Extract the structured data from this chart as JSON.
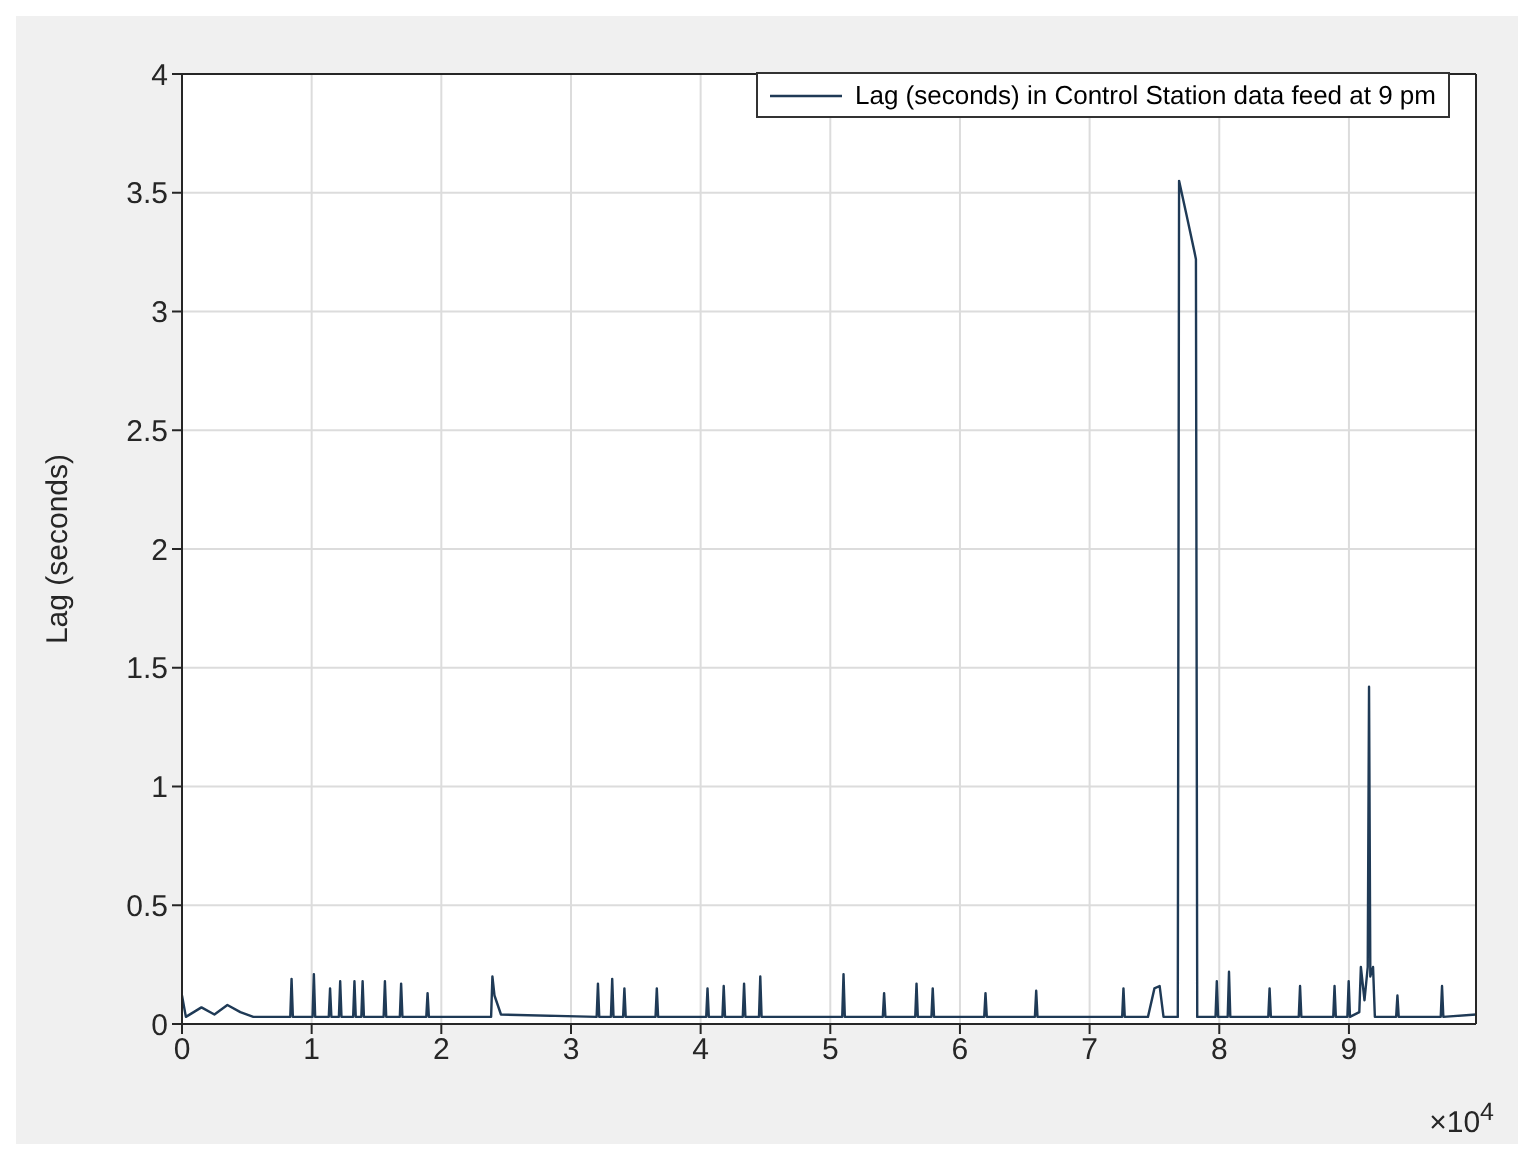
{
  "chart_data": {
    "type": "line",
    "ylabel": "Lag (seconds)",
    "annotations": [
      "×10$^{4}$"
    ],
    "xlim": [
      0,
      9.98
    ],
    "ylim": [
      0,
      4
    ],
    "xticks": [
      0,
      1,
      2,
      3,
      4,
      5,
      6,
      7,
      8,
      9
    ],
    "yticks": [
      0,
      0.5,
      1,
      1.5,
      2,
      2.5,
      3,
      3.5,
      4
    ],
    "grid": true,
    "legend": "top right",
    "marker": "none",
    "line_style": "solid",
    "series": [
      {
        "name": "Lag (seconds) in Control Station data feed at 9 pm",
        "color": "#1f3a56",
        "x": [
          0,
          0.03,
          0.15,
          0.25,
          0.35,
          0.45,
          0.55,
          0.835,
          0.845,
          0.855,
          1.007,
          1.017,
          1.027,
          1.132,
          1.142,
          1.152,
          1.21,
          1.22,
          1.23,
          1.32,
          1.33,
          1.34,
          1.383,
          1.393,
          1.403,
          1.555,
          1.565,
          1.575,
          1.68,
          1.69,
          1.7,
          1.884,
          1.894,
          1.904,
          2.384,
          2.394,
          2.41,
          2.46,
          3.198,
          3.208,
          3.218,
          3.308,
          3.318,
          3.328,
          3.402,
          3.412,
          3.422,
          3.652,
          3.662,
          3.672,
          4.043,
          4.053,
          4.063,
          4.168,
          4.178,
          4.188,
          4.325,
          4.335,
          4.345,
          4.45,
          4.46,
          4.47,
          5.092,
          5.102,
          5.112,
          5.405,
          5.415,
          5.425,
          5.655,
          5.665,
          5.675,
          5.78,
          5.79,
          5.8,
          6.187,
          6.197,
          6.207,
          6.578,
          6.588,
          6.598,
          7.251,
          7.261,
          7.271,
          7.45,
          7.5,
          7.54,
          7.57,
          7.68,
          7.69,
          7.75,
          7.809,
          7.82,
          7.83,
          7.971,
          7.981,
          7.991,
          8.065,
          8.075,
          8.085,
          8.378,
          8.388,
          8.398,
          8.613,
          8.623,
          8.633,
          8.879,
          8.889,
          8.899,
          8.988,
          8.998,
          9.008,
          9.08,
          9.092,
          9.12,
          9.145,
          9.155,
          9.165,
          9.186,
          9.2,
          9.364,
          9.374,
          9.384,
          9.708,
          9.718,
          9.728,
          9.98
        ],
        "values": [
          0.12,
          0.03,
          0.07,
          0.04,
          0.08,
          0.05,
          0.03,
          0.03,
          0.19,
          0.03,
          0.03,
          0.21,
          0.03,
          0.03,
          0.15,
          0.03,
          0.03,
          0.18,
          0.03,
          0.03,
          0.18,
          0.03,
          0.03,
          0.18,
          0.03,
          0.03,
          0.18,
          0.03,
          0.03,
          0.17,
          0.03,
          0.03,
          0.13,
          0.03,
          0.03,
          0.2,
          0.12,
          0.04,
          0.03,
          0.17,
          0.03,
          0.03,
          0.19,
          0.03,
          0.03,
          0.15,
          0.03,
          0.03,
          0.15,
          0.03,
          0.03,
          0.15,
          0.03,
          0.03,
          0.16,
          0.03,
          0.03,
          0.17,
          0.03,
          0.03,
          0.2,
          0.03,
          0.03,
          0.21,
          0.03,
          0.03,
          0.13,
          0.03,
          0.03,
          0.17,
          0.03,
          0.03,
          0.15,
          0.03,
          0.03,
          0.13,
          0.03,
          0.03,
          0.14,
          0.03,
          0.03,
          0.15,
          0.03,
          0.03,
          0.15,
          0.16,
          0.03,
          0.03,
          3.55,
          3.4,
          3.25,
          3.22,
          0.03,
          0.03,
          0.18,
          0.03,
          0.03,
          0.22,
          0.03,
          0.03,
          0.15,
          0.03,
          0.03,
          0.16,
          0.03,
          0.03,
          0.16,
          0.03,
          0.03,
          0.18,
          0.03,
          0.05,
          0.24,
          0.1,
          0.24,
          1.42,
          0.2,
          0.24,
          0.03,
          0.03,
          0.12,
          0.03,
          0.03,
          0.16,
          0.03,
          0.04
        ]
      }
    ]
  }
}
